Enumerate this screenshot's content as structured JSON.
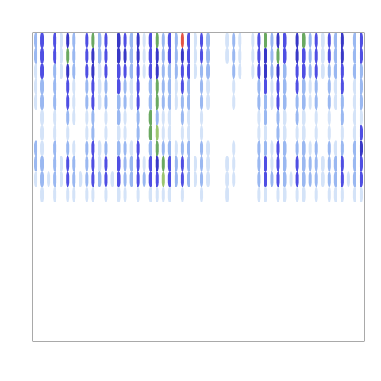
{
  "chart_data": {
    "type": "heatmap",
    "tick_labels": false,
    "xlim": [
      0,
      52
    ],
    "ylim": [
      0,
      20
    ],
    "colorscale": {
      "range": [
        0,
        9
      ],
      "colors": [
        "#ffffff",
        "#cfe0f7",
        "#8fb0ef",
        "#3c3ce0",
        "#2222c0",
        "#5aa050",
        "#90c060",
        "#e8e040",
        "#f0a030",
        "#e04030"
      ]
    },
    "values": [
      [
        2,
        3,
        0,
        3,
        1,
        4,
        2,
        0,
        3,
        5,
        2,
        3,
        0,
        4,
        3,
        2,
        4,
        1,
        3,
        5,
        2,
        3,
        2,
        9,
        3,
        1,
        3,
        2,
        0,
        0,
        1,
        2,
        1,
        0,
        1,
        3,
        5,
        2,
        4,
        3,
        0,
        4,
        5,
        2,
        3,
        1,
        3,
        2,
        4,
        0,
        2,
        3
      ],
      [
        2,
        3,
        0,
        3,
        1,
        5,
        2,
        0,
        3,
        4,
        2,
        3,
        0,
        4,
        4,
        2,
        4,
        1,
        3,
        4,
        2,
        3,
        2,
        4,
        3,
        1,
        3,
        2,
        0,
        0,
        1,
        2,
        1,
        0,
        1,
        3,
        4,
        2,
        5,
        3,
        0,
        4,
        3,
        2,
        3,
        1,
        3,
        2,
        4,
        0,
        2,
        3
      ],
      [
        1,
        3,
        0,
        2,
        1,
        4,
        2,
        0,
        3,
        4,
        1,
        3,
        0,
        3,
        3,
        2,
        3,
        1,
        3,
        4,
        2,
        2,
        2,
        3,
        3,
        1,
        2,
        2,
        0,
        0,
        0,
        2,
        1,
        0,
        1,
        3,
        4,
        2,
        4,
        2,
        0,
        3,
        3,
        2,
        3,
        1,
        2,
        2,
        3,
        0,
        2,
        2
      ],
      [
        1,
        2,
        0,
        2,
        0,
        3,
        1,
        0,
        2,
        3,
        1,
        2,
        0,
        3,
        2,
        1,
        3,
        0,
        2,
        5,
        2,
        2,
        1,
        3,
        2,
        0,
        2,
        1,
        0,
        0,
        0,
        1,
        0,
        0,
        0,
        2,
        3,
        1,
        3,
        2,
        0,
        3,
        2,
        1,
        2,
        0,
        2,
        1,
        3,
        0,
        1,
        2
      ],
      [
        1,
        2,
        0,
        2,
        0,
        3,
        1,
        0,
        2,
        3,
        1,
        2,
        0,
        2,
        2,
        1,
        3,
        0,
        2,
        5,
        2,
        2,
        1,
        2,
        2,
        0,
        2,
        1,
        0,
        0,
        0,
        1,
        0,
        0,
        0,
        2,
        2,
        1,
        3,
        2,
        0,
        2,
        2,
        1,
        2,
        0,
        2,
        1,
        2,
        0,
        1,
        2
      ],
      [
        0,
        1,
        0,
        1,
        0,
        2,
        1,
        0,
        1,
        2,
        0,
        1,
        0,
        2,
        1,
        0,
        2,
        0,
        5,
        2,
        1,
        1,
        0,
        2,
        1,
        0,
        1,
        0,
        0,
        0,
        0,
        0,
        0,
        0,
        0,
        1,
        2,
        0,
        2,
        1,
        0,
        2,
        1,
        0,
        1,
        0,
        1,
        0,
        2,
        0,
        1,
        1
      ],
      [
        0,
        1,
        0,
        1,
        0,
        1,
        0,
        0,
        1,
        2,
        0,
        1,
        0,
        1,
        1,
        0,
        2,
        0,
        5,
        6,
        1,
        1,
        0,
        1,
        1,
        0,
        1,
        0,
        0,
        0,
        0,
        0,
        0,
        0,
        0,
        1,
        1,
        0,
        2,
        1,
        0,
        1,
        1,
        0,
        1,
        0,
        1,
        0,
        1,
        0,
        1,
        3
      ],
      [
        2,
        1,
        0,
        2,
        0,
        2,
        1,
        0,
        2,
        3,
        1,
        2,
        0,
        2,
        2,
        1,
        3,
        0,
        2,
        5,
        2,
        2,
        1,
        2,
        2,
        0,
        2,
        1,
        0,
        0,
        0,
        1,
        0,
        0,
        0,
        2,
        2,
        1,
        3,
        2,
        0,
        2,
        2,
        1,
        2,
        0,
        2,
        1,
        2,
        0,
        2,
        4
      ],
      [
        2,
        2,
        0,
        2,
        1,
        3,
        2,
        0,
        2,
        3,
        1,
        3,
        0,
        3,
        2,
        2,
        3,
        1,
        3,
        4,
        5,
        3,
        2,
        3,
        2,
        1,
        2,
        1,
        0,
        0,
        1,
        1,
        0,
        0,
        0,
        2,
        3,
        1,
        3,
        2,
        0,
        3,
        2,
        2,
        2,
        1,
        2,
        2,
        3,
        0,
        2,
        3
      ],
      [
        1,
        2,
        1,
        2,
        1,
        3,
        2,
        1,
        2,
        3,
        2,
        3,
        1,
        3,
        2,
        2,
        3,
        2,
        3,
        3,
        6,
        3,
        2,
        3,
        2,
        1,
        2,
        1,
        0,
        0,
        1,
        1,
        0,
        0,
        0,
        2,
        3,
        2,
        3,
        2,
        1,
        3,
        2,
        2,
        2,
        1,
        2,
        2,
        3,
        1,
        2,
        3
      ],
      [
        0,
        1,
        0,
        1,
        0,
        1,
        1,
        0,
        1,
        1,
        0,
        1,
        0,
        1,
        1,
        0,
        1,
        0,
        1,
        1,
        1,
        1,
        0,
        1,
        0,
        0,
        1,
        0,
        0,
        0,
        1,
        0,
        0,
        0,
        0,
        1,
        1,
        0,
        1,
        1,
        0,
        1,
        1,
        0,
        1,
        0,
        1,
        1,
        1,
        0,
        1,
        1
      ]
    ]
  }
}
